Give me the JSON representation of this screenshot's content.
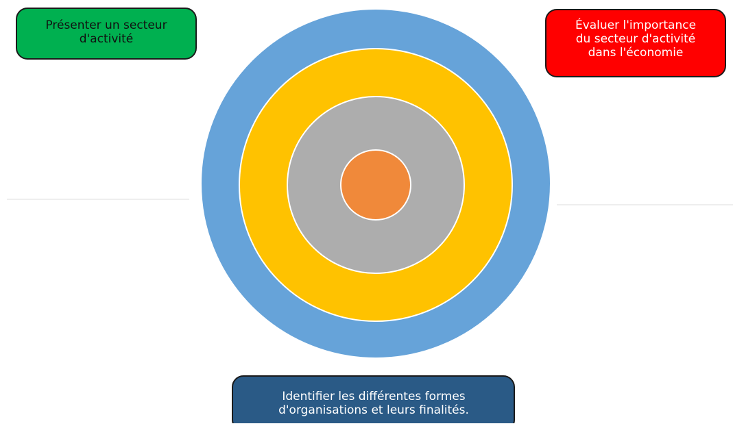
{
  "boxes": [
    {
      "text": [
        "Présenter un secteur",
        "d'activité"
      ]
    },
    {
      "text": [
        "Évaluer l'importance",
        "du secteur d'activité",
        "dans l'économie"
      ]
    },
    {
      "text": [
        "Identifier les différentes formes",
        "d'organisations et leurs finalités."
      ]
    }
  ]
}
